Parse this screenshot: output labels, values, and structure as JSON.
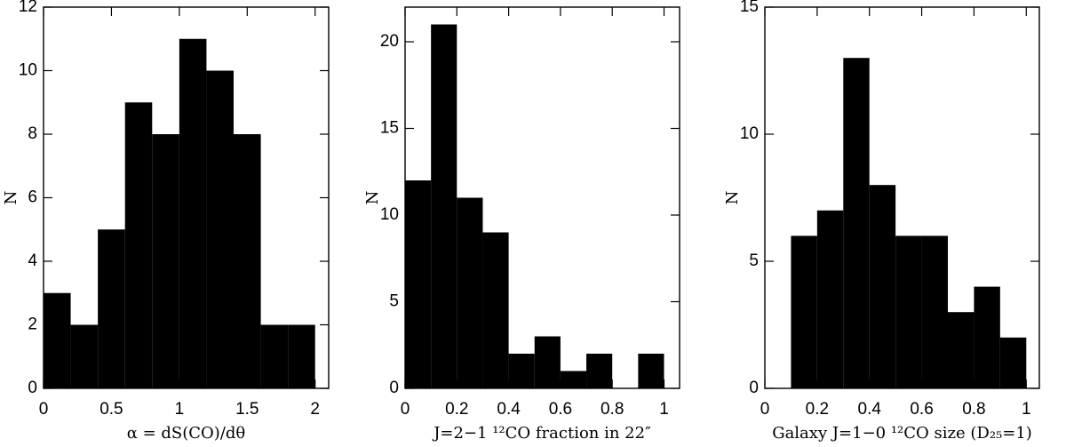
{
  "chart_data": [
    {
      "type": "histogram",
      "xlabel": "α = dS(CO)/dθ",
      "ylabel": "N",
      "bins": [
        0,
        0.2,
        0.4,
        0.6,
        0.8,
        1.0,
        1.2,
        1.4,
        1.6,
        1.8,
        2.0
      ],
      "values": [
        3,
        2,
        5,
        9,
        8,
        11,
        10,
        8,
        2,
        2
      ],
      "color": "#000000",
      "xlim": [
        0,
        2.1
      ],
      "xticks": [
        0,
        0.5,
        1,
        1.5,
        2
      ],
      "ylim": [
        0,
        12
      ],
      "yticks": [
        0,
        2,
        4,
        6,
        8,
        10,
        12
      ]
    },
    {
      "type": "histogram",
      "xlabel": "J=2−1 ¹²CO fraction in 22″",
      "ylabel": "N",
      "bins": [
        0,
        0.1,
        0.2,
        0.3,
        0.4,
        0.5,
        0.6,
        0.7,
        0.8,
        0.9,
        1.0
      ],
      "values": [
        12,
        21,
        11,
        9,
        2,
        3,
        1,
        2,
        0,
        2
      ],
      "color": "#000000",
      "xlim": [
        0,
        1.06
      ],
      "xticks": [
        0,
        0.2,
        0.4,
        0.6,
        0.8,
        1
      ],
      "ylim": [
        0,
        22
      ],
      "yticks": [
        0,
        5,
        10,
        15,
        20
      ]
    },
    {
      "type": "histogram",
      "xlabel": "Galaxy J=1−0 ¹²CO size (D₂₅=1)",
      "ylabel": "N",
      "bins": [
        0.1,
        0.2,
        0.3,
        0.4,
        0.5,
        0.6,
        0.7,
        0.8,
        0.9,
        1.0
      ],
      "values": [
        6,
        7,
        13,
        8,
        6,
        6,
        3,
        4,
        2
      ],
      "color": "#000000",
      "xlim": [
        0,
        1.05
      ],
      "xticks": [
        0,
        0.2,
        0.4,
        0.6,
        0.8,
        1
      ],
      "ylim": [
        0,
        15
      ],
      "yticks": [
        0,
        5,
        10,
        15
      ]
    }
  ]
}
